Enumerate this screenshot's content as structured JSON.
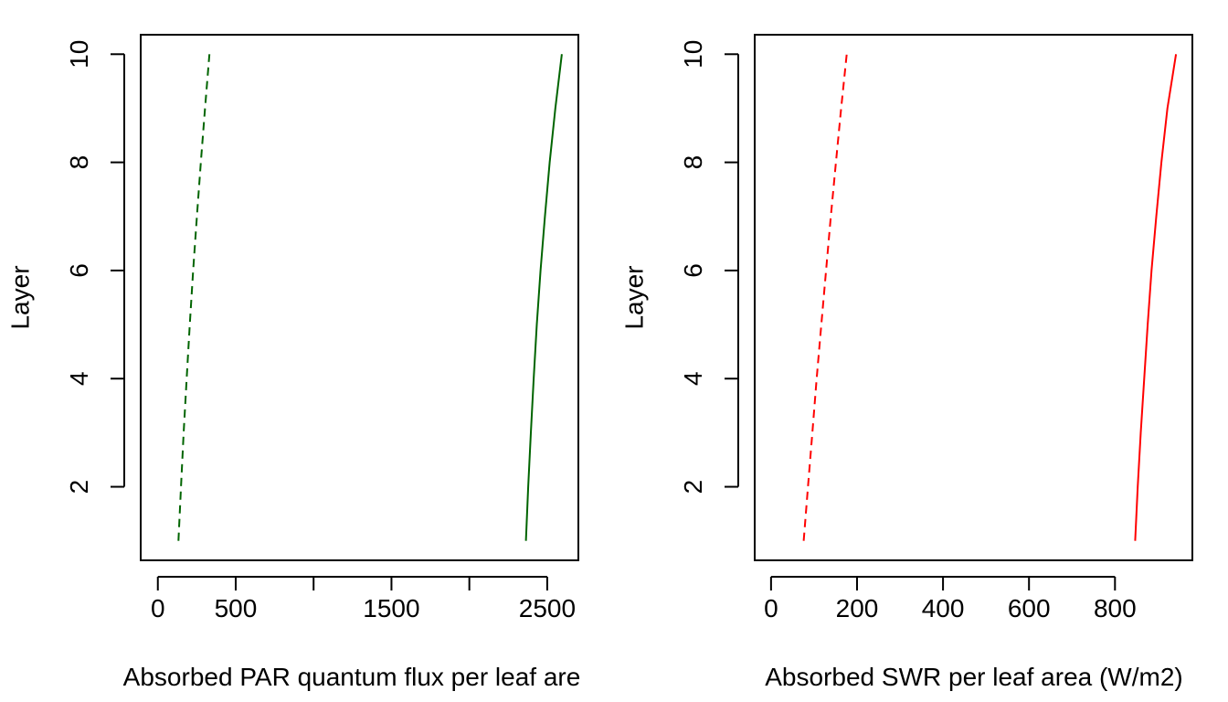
{
  "chart_data": [
    {
      "type": "line",
      "title": "",
      "xlabel": "Absorbed PAR quantum flux per leaf are",
      "ylabel": "Layer",
      "xlim": [
        -110,
        2700
      ],
      "ylim": [
        0.64,
        10.36
      ],
      "xticks": [
        0,
        500,
        1000,
        1500,
        2000,
        2500
      ],
      "xtick_labels": [
        "0",
        "500",
        "",
        "1500",
        "",
        "2500"
      ],
      "yticks": [
        2,
        4,
        6,
        8,
        10
      ],
      "ytick_labels": [
        "2",
        "4",
        "6",
        "8",
        "10"
      ],
      "grid": false,
      "series": [
        {
          "color": "#006400",
          "dash": "solid",
          "points": [
            [
              2363,
              1
            ],
            [
              2378,
              2
            ],
            [
              2395,
              3
            ],
            [
              2413,
              4
            ],
            [
              2433,
              5
            ],
            [
              2457,
              6
            ],
            [
              2485,
              7
            ],
            [
              2516,
              8
            ],
            [
              2552,
              9
            ],
            [
              2594,
              10
            ]
          ]
        },
        {
          "color": "#006400",
          "dash": "dashed",
          "points": [
            [
              132,
              1
            ],
            [
              149,
              2
            ],
            [
              166,
              3
            ],
            [
              185,
              4
            ],
            [
              205,
              5
            ],
            [
              227,
              6
            ],
            [
              251,
              7
            ],
            [
              276,
              8
            ],
            [
              303,
              9
            ],
            [
              331,
              10
            ]
          ]
        }
      ]
    },
    {
      "type": "line",
      "title": "",
      "xlabel": "Absorbed SWR per leaf area (W/m2)",
      "ylabel": "Layer",
      "xlim": [
        -38,
        980
      ],
      "ylim": [
        0.64,
        10.36
      ],
      "xticks": [
        0,
        200,
        400,
        600,
        800
      ],
      "xtick_labels": [
        "0",
        "200",
        "400",
        "600",
        "800"
      ],
      "yticks": [
        2,
        4,
        6,
        8,
        10
      ],
      "ytick_labels": [
        "2",
        "4",
        "6",
        "8",
        "10"
      ],
      "grid": false,
      "series": [
        {
          "color": "#ff0000",
          "dash": "solid",
          "points": [
            [
              847,
              1
            ],
            [
              853,
              2
            ],
            [
              860,
              3
            ],
            [
              868,
              4
            ],
            [
              876,
              5
            ],
            [
              885,
              6
            ],
            [
              896,
              7
            ],
            [
              908,
              8
            ],
            [
              922,
              9
            ],
            [
              942,
              10
            ]
          ]
        },
        {
          "color": "#ff0000",
          "dash": "dashed",
          "points": [
            [
              76,
              1
            ],
            [
              86,
              2
            ],
            [
              96,
              3
            ],
            [
              106,
              4
            ],
            [
              117,
              5
            ],
            [
              128,
              6
            ],
            [
              139,
              7
            ],
            [
              151,
              8
            ],
            [
              163,
              9
            ],
            [
              176,
              10
            ]
          ]
        }
      ]
    }
  ]
}
